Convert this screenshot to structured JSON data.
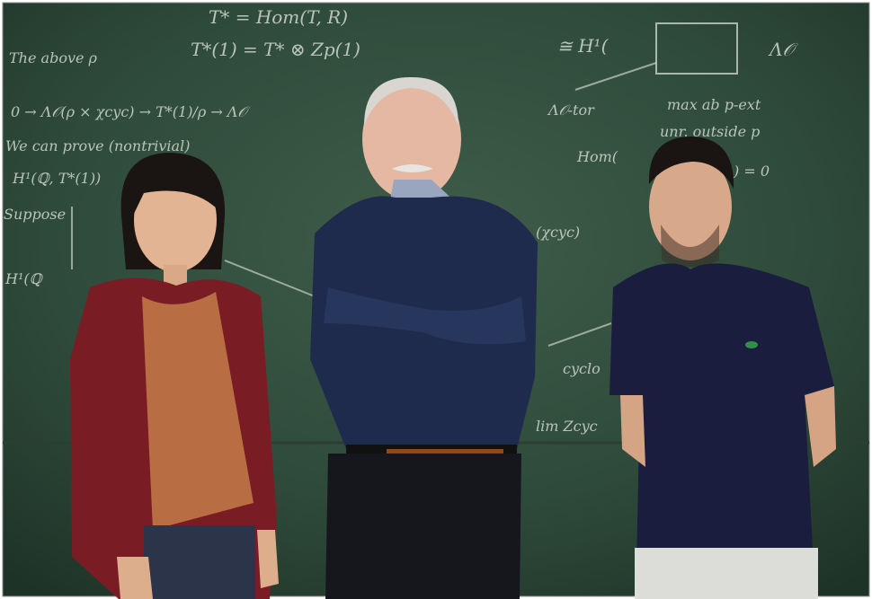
{
  "chalkboard": {
    "lines": [
      "T* = Hom(T, R)",
      "T*(1) = T* ⊗ Zp(1)",
      "The above ρ",
      "0 → Λ𝒪(ρ × χcyc) → T*(1)/ρ → Λ𝒪",
      "We can prove (nontrivial)",
      "H¹(ℚ, T*(1))",
      "Suppose",
      "H¹(ℚ",
      "≅ H¹(",
      "Λ𝒪",
      "Λ𝒪-tor",
      "max ab p-ext",
      "unr. outside p",
      "Hom(",
      ") = 0",
      "(χcyc)",
      "cyclo",
      "lim Zcyc"
    ]
  }
}
